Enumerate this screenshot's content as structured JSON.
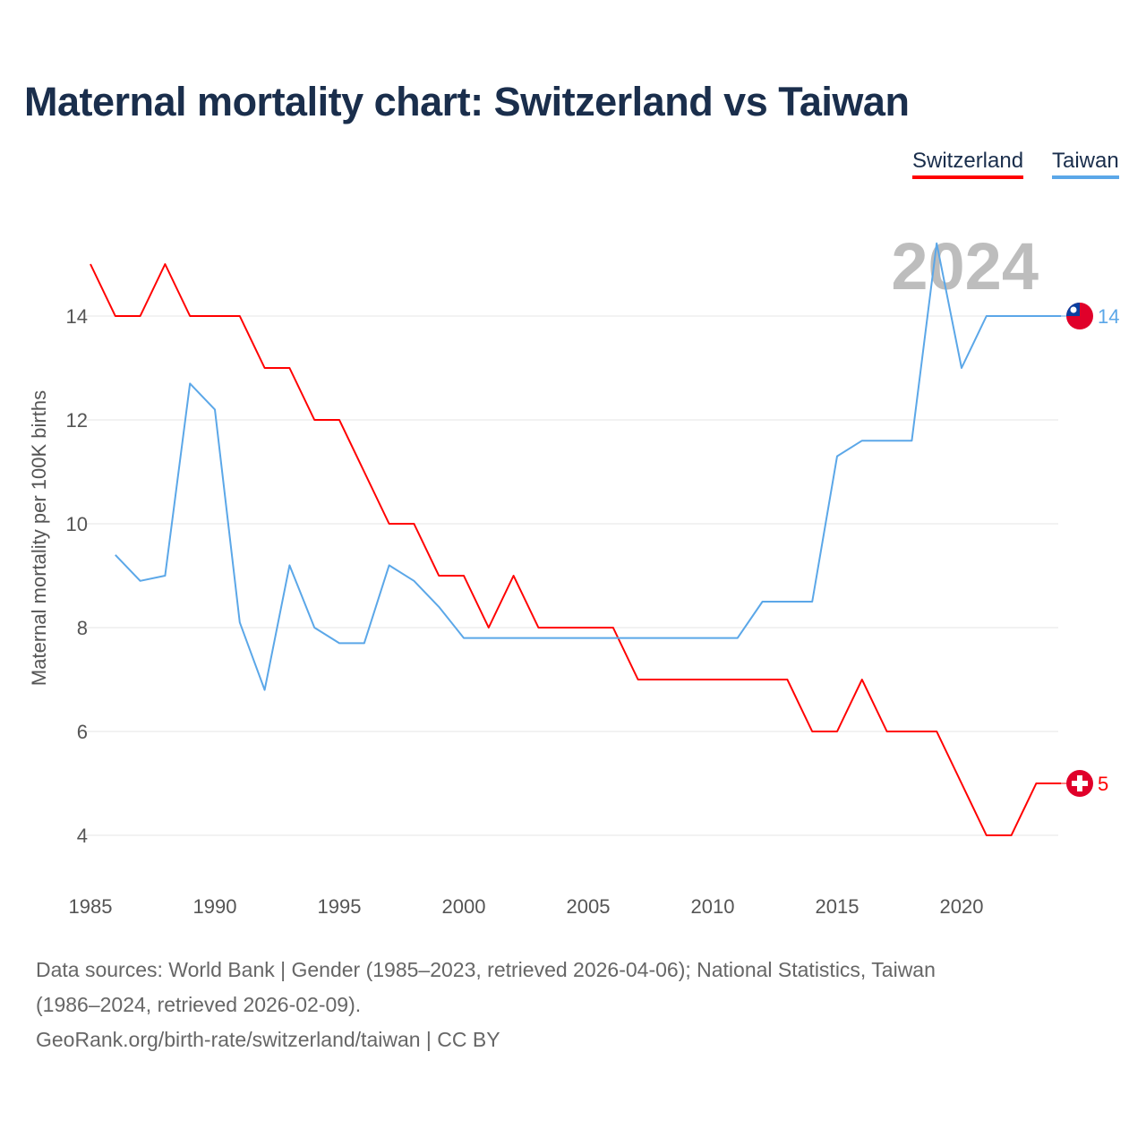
{
  "title": "Maternal mortality chart: Switzerland vs Taiwan",
  "legend": [
    "Switzerland",
    "Taiwan"
  ],
  "year_label": "2024",
  "sources": {
    "line1": "Data sources: World Bank | Gender (1985–2023, retrieved 2026-04-06); National Statistics, Taiwan",
    "line2": "(1986–2024, retrieved 2026-02-09).",
    "line3": "GeoRank.org/birth-rate/switzerland/taiwan | CC BY"
  },
  "chart_data": {
    "type": "line",
    "title": "Maternal mortality chart: Switzerland vs Taiwan",
    "xlabel": "",
    "ylabel": "Maternal mortality per 100K births",
    "xlim": [
      1985,
      2024
    ],
    "ylim": [
      3,
      16
    ],
    "xticks": [
      1985,
      1990,
      1995,
      2000,
      2005,
      2010,
      2015,
      2020
    ],
    "yticks": [
      4,
      6,
      8,
      10,
      12,
      14
    ],
    "grid": true,
    "legend_position": "top-right",
    "series": [
      {
        "name": "Switzerland",
        "color": "#ff0000",
        "end_label": "5",
        "flag": "switzerland",
        "x": [
          1985,
          1986,
          1987,
          1988,
          1989,
          1990,
          1991,
          1992,
          1993,
          1994,
          1995,
          1996,
          1997,
          1998,
          1999,
          2000,
          2001,
          2002,
          2003,
          2004,
          2005,
          2006,
          2007,
          2008,
          2009,
          2010,
          2011,
          2012,
          2013,
          2014,
          2015,
          2016,
          2017,
          2018,
          2019,
          2020,
          2021,
          2022,
          2023,
          2024
        ],
        "y": [
          15,
          14,
          14,
          15,
          14,
          14,
          14,
          13,
          13,
          12,
          12,
          11,
          10,
          10,
          9,
          9,
          8,
          9,
          8,
          8,
          8,
          8,
          7,
          7,
          7,
          7,
          7,
          7,
          7,
          6,
          6,
          7,
          6,
          6,
          6,
          5,
          4,
          4,
          5,
          5
        ]
      },
      {
        "name": "Taiwan",
        "color": "#5ba7e8",
        "end_label": "14",
        "flag": "taiwan",
        "x": [
          1986,
          1987,
          1988,
          1989,
          1990,
          1991,
          1992,
          1993,
          1994,
          1995,
          1996,
          1997,
          1998,
          1999,
          2000,
          2001,
          2002,
          2003,
          2004,
          2005,
          2006,
          2007,
          2008,
          2009,
          2010,
          2011,
          2012,
          2013,
          2014,
          2015,
          2016,
          2017,
          2018,
          2019,
          2020,
          2021,
          2022,
          2023,
          2024
        ],
        "y": [
          9.4,
          8.9,
          9.0,
          12.7,
          12.2,
          8.1,
          6.8,
          9.2,
          8.0,
          7.7,
          7.7,
          9.2,
          8.9,
          8.4,
          7.8,
          7.8,
          7.8,
          7.8,
          7.8,
          7.8,
          7.8,
          7.8,
          7.8,
          7.8,
          7.8,
          7.8,
          8.5,
          8.5,
          8.5,
          11.3,
          11.6,
          11.6,
          11.6,
          15.4,
          13,
          14,
          14,
          14,
          14
        ]
      }
    ]
  }
}
